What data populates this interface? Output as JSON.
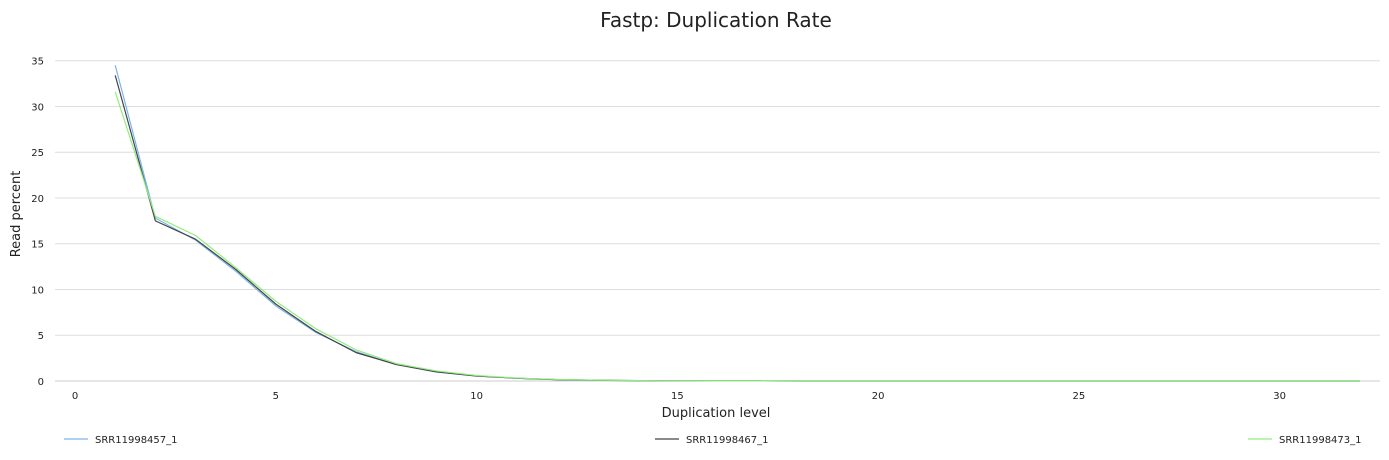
{
  "chart_data": {
    "type": "line",
    "title": "Fastp: Duplication Rate",
    "xlabel": "Duplication level",
    "ylabel": "Read percent",
    "xlim": [
      -0.5,
      32.5
    ],
    "ylim": [
      0,
      35
    ],
    "x_ticks": [
      0,
      5,
      10,
      15,
      20,
      25,
      30
    ],
    "y_ticks": [
      0,
      5,
      10,
      15,
      20,
      25,
      30,
      35
    ],
    "grid": "horizontal",
    "legend_position": "bottom",
    "series": [
      {
        "name": "SRR11998457_1",
        "color": "#7cb5ec",
        "x": [
          1,
          2,
          3,
          4,
          5,
          6,
          7,
          8,
          9,
          10,
          11,
          12,
          13,
          14,
          15,
          16,
          17,
          18,
          19,
          20,
          21,
          22,
          23,
          24,
          25,
          26,
          27,
          28,
          29,
          30,
          31,
          32
        ],
        "y": [
          34.5,
          17.8,
          15.4,
          12.0,
          8.2,
          5.3,
          3.2,
          1.8,
          1.0,
          0.55,
          0.3,
          0.15,
          0.08,
          0.04,
          0.02,
          0.01,
          0.01,
          0,
          0,
          0,
          0,
          0,
          0,
          0,
          0,
          0,
          0,
          0,
          0,
          0,
          0,
          0
        ]
      },
      {
        "name": "SRR11998467_1",
        "color": "#434348",
        "x": [
          1,
          2,
          3,
          4,
          5,
          6,
          7,
          8,
          9,
          10,
          11,
          12,
          13,
          14,
          15,
          16,
          17,
          18,
          19,
          20,
          21,
          22,
          23,
          24,
          25,
          26,
          27,
          28,
          29,
          30,
          31,
          32
        ],
        "y": [
          33.4,
          17.5,
          15.5,
          12.2,
          8.4,
          5.4,
          3.1,
          1.8,
          1.0,
          0.55,
          0.3,
          0.15,
          0.08,
          0.04,
          0.02,
          0.01,
          0.01,
          0,
          0,
          0,
          0,
          0,
          0,
          0,
          0,
          0,
          0,
          0,
          0,
          0,
          0,
          0
        ]
      },
      {
        "name": "SRR11998473_1",
        "color": "#90ed7d",
        "x": [
          1,
          2,
          3,
          4,
          5,
          6,
          7,
          8,
          9,
          10,
          11,
          12,
          13,
          14,
          15,
          16,
          17,
          18,
          19,
          20,
          21,
          22,
          23,
          24,
          25,
          26,
          27,
          28,
          29,
          30,
          31,
          32
        ],
        "y": [
          31.6,
          18.0,
          15.9,
          12.4,
          8.7,
          5.7,
          3.4,
          1.9,
          1.1,
          0.6,
          0.32,
          0.17,
          0.09,
          0.05,
          0.02,
          0.01,
          0.01,
          0,
          0,
          0,
          0,
          0,
          0,
          0,
          0,
          0,
          0,
          0,
          0,
          0,
          0,
          0
        ]
      }
    ]
  }
}
